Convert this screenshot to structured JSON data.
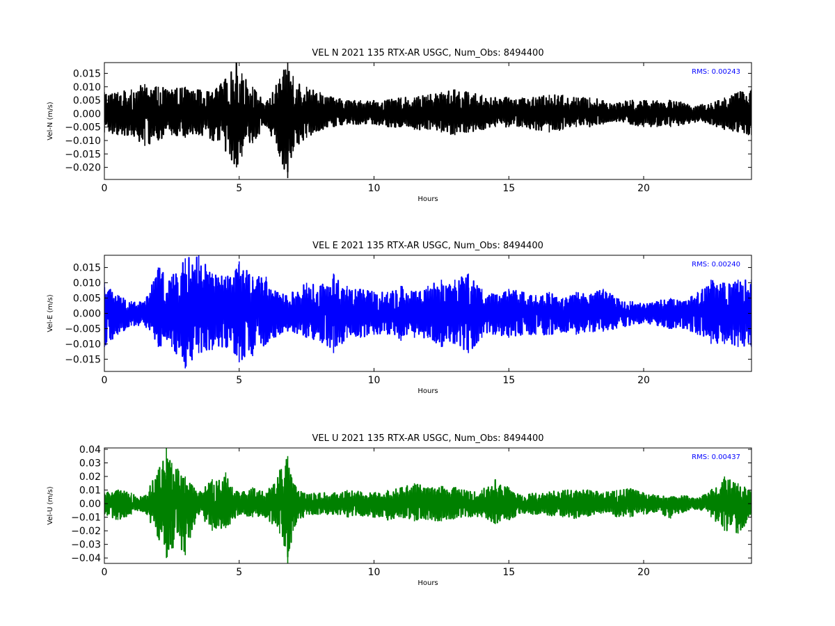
{
  "figure": {
    "background": "#ffffff"
  },
  "chart_data": [
    {
      "type": "line",
      "title": "VEL N 2021 135 RTX-AR  USGC, Num_Obs: 8494400",
      "xlabel": "Hours",
      "ylabel": "Vel-N (m/s)",
      "xlim": [
        0,
        24
      ],
      "ylim": [
        -0.0245,
        0.019
      ],
      "xticks": [
        0,
        5,
        10,
        15,
        20
      ],
      "xtick_labels": [
        "0",
        "5",
        "10",
        "15",
        "20"
      ],
      "yticks": [
        -0.02,
        -0.015,
        -0.01,
        -0.005,
        0.0,
        0.005,
        0.01,
        0.015
      ],
      "ytick_labels": [
        "−0.020",
        "−0.015",
        "−0.010",
        "−0.005",
        "0.000",
        "0.005",
        "0.010",
        "0.015"
      ],
      "annotation": "RMS:  0.00243",
      "annotation_color": "#0000ff",
      "grid": false,
      "series": [
        {
          "color": "#000000",
          "x": [
            0,
            0.5,
            1,
            1.5,
            2,
            2.5,
            3,
            3.5,
            4,
            4.5,
            4.9,
            5.1,
            5.5,
            6,
            6.5,
            6.8,
            7,
            7.5,
            8,
            8.5,
            9,
            9.5,
            10,
            10.5,
            11,
            11.5,
            12,
            12.5,
            13,
            13.5,
            14,
            14.5,
            15,
            15.5,
            16,
            16.5,
            17,
            17.5,
            18,
            18.5,
            19,
            19.5,
            20,
            20.5,
            21,
            21.5,
            22,
            22.5,
            23,
            23.5,
            24
          ],
          "upper": [
            0.008,
            0.008,
            0.009,
            0.011,
            0.01,
            0.009,
            0.01,
            0.009,
            0.008,
            0.013,
            0.019,
            0.015,
            0.01,
            0.004,
            0.013,
            0.019,
            0.014,
            0.01,
            0.008,
            0.006,
            0.005,
            0.005,
            0.005,
            0.005,
            0.006,
            0.006,
            0.007,
            0.008,
            0.009,
            0.008,
            0.007,
            0.006,
            0.006,
            0.006,
            0.006,
            0.007,
            0.007,
            0.006,
            0.006,
            0.005,
            0.004,
            0.005,
            0.005,
            0.005,
            0.005,
            0.004,
            0.003,
            0.004,
            0.006,
            0.008,
            0.009
          ],
          "lower": [
            -0.007,
            -0.008,
            -0.008,
            -0.012,
            -0.01,
            -0.008,
            -0.009,
            -0.008,
            -0.01,
            -0.014,
            -0.02,
            -0.016,
            -0.011,
            -0.004,
            -0.016,
            -0.024,
            -0.014,
            -0.009,
            -0.006,
            -0.005,
            -0.004,
            -0.004,
            -0.004,
            -0.005,
            -0.005,
            -0.006,
            -0.006,
            -0.007,
            -0.008,
            -0.007,
            -0.006,
            -0.005,
            -0.005,
            -0.005,
            -0.006,
            -0.007,
            -0.006,
            -0.005,
            -0.005,
            -0.004,
            -0.003,
            -0.004,
            -0.005,
            -0.005,
            -0.005,
            -0.004,
            -0.003,
            -0.004,
            -0.006,
            -0.007,
            -0.008
          ]
        }
      ]
    },
    {
      "type": "line",
      "title": "VEL E 2021 135 RTX-AR  USGC, Num_Obs: 8494400",
      "xlabel": "Hours",
      "ylabel": "Vel-E (m/s)",
      "xlim": [
        0,
        24
      ],
      "ylim": [
        -0.019,
        0.019
      ],
      "xticks": [
        0,
        5,
        10,
        15,
        20
      ],
      "xtick_labels": [
        "0",
        "5",
        "10",
        "15",
        "20"
      ],
      "yticks": [
        -0.015,
        -0.01,
        -0.005,
        0.0,
        0.005,
        0.01,
        0.015
      ],
      "ytick_labels": [
        "−0.015",
        "−0.010",
        "−0.005",
        "0.000",
        "0.005",
        "0.010",
        "0.015"
      ],
      "annotation": "RMS:  0.00240",
      "annotation_color": "#0000ff",
      "grid": false,
      "series": [
        {
          "color": "#0000ff",
          "x": [
            0,
            0.5,
            1,
            1.5,
            2,
            2.5,
            3,
            3.5,
            4,
            4.5,
            5,
            5.5,
            6,
            6.5,
            7,
            7.5,
            8,
            8.5,
            9,
            9.5,
            10,
            10.5,
            11,
            11.5,
            12,
            12.5,
            13,
            13.5,
            14,
            14.5,
            15,
            15.5,
            16,
            16.5,
            17,
            17.5,
            18,
            18.5,
            19,
            19.5,
            20,
            20.5,
            21,
            21.5,
            22,
            22.5,
            23,
            23.5,
            24
          ],
          "upper": [
            0.01,
            0.006,
            0.004,
            0.004,
            0.015,
            0.012,
            0.018,
            0.019,
            0.013,
            0.012,
            0.017,
            0.012,
            0.012,
            0.006,
            0.007,
            0.01,
            0.009,
            0.013,
            0.009,
            0.008,
            0.007,
            0.007,
            0.009,
            0.007,
            0.009,
            0.011,
            0.011,
            0.013,
            0.008,
            0.006,
            0.008,
            0.007,
            0.006,
            0.007,
            0.005,
            0.007,
            0.006,
            0.008,
            0.005,
            0.004,
            0.003,
            0.004,
            0.005,
            0.004,
            0.007,
            0.011,
            0.01,
            0.011,
            0.011
          ],
          "lower": [
            -0.011,
            -0.007,
            -0.004,
            -0.004,
            -0.011,
            -0.011,
            -0.018,
            -0.013,
            -0.012,
            -0.011,
            -0.016,
            -0.014,
            -0.01,
            -0.007,
            -0.006,
            -0.008,
            -0.009,
            -0.013,
            -0.008,
            -0.008,
            -0.007,
            -0.007,
            -0.009,
            -0.008,
            -0.008,
            -0.011,
            -0.01,
            -0.013,
            -0.008,
            -0.007,
            -0.008,
            -0.007,
            -0.007,
            -0.007,
            -0.006,
            -0.007,
            -0.006,
            -0.006,
            -0.005,
            -0.004,
            -0.003,
            -0.004,
            -0.005,
            -0.005,
            -0.007,
            -0.01,
            -0.01,
            -0.011,
            -0.011
          ]
        }
      ]
    },
    {
      "type": "line",
      "title": "VEL U 2021 135 RTX-AR  USGC, Num_Obs: 8494400",
      "xlabel": "Hours",
      "ylabel": "Vel-U (m/s)",
      "xlim": [
        0,
        24
      ],
      "ylim": [
        -0.044,
        0.041
      ],
      "xticks": [
        0,
        5,
        10,
        15,
        20
      ],
      "xtick_labels": [
        "0",
        "5",
        "10",
        "15",
        "20"
      ],
      "yticks": [
        -0.04,
        -0.03,
        -0.02,
        -0.01,
        0.0,
        0.01,
        0.02,
        0.03,
        0.04
      ],
      "ytick_labels": [
        "−0.04",
        "−0.03",
        "−0.02",
        "−0.01",
        "0.00",
        "0.01",
        "0.02",
        "0.03",
        "0.04"
      ],
      "annotation": "RMS:  0.00437",
      "annotation_color": "#0000ff",
      "grid": false,
      "series": [
        {
          "color": "#008000",
          "x": [
            0,
            0.5,
            1,
            1.5,
            2,
            2.3,
            2.5,
            3,
            3.5,
            4,
            4.5,
            5,
            5.5,
            6,
            6.5,
            6.8,
            7,
            7.5,
            8,
            8.5,
            9,
            9.5,
            10,
            10.5,
            11,
            11.5,
            12,
            12.5,
            13,
            13.5,
            14,
            14.5,
            15,
            15.5,
            16,
            16.5,
            17,
            17.5,
            18,
            18.5,
            19,
            19.5,
            20,
            20.5,
            21,
            21.5,
            22,
            22.5,
            23,
            23.5,
            24
          ],
          "upper": [
            0.008,
            0.01,
            0.008,
            0.006,
            0.025,
            0.041,
            0.03,
            0.02,
            0.008,
            0.018,
            0.023,
            0.008,
            0.012,
            0.008,
            0.025,
            0.035,
            0.015,
            0.007,
            0.008,
            0.008,
            0.01,
            0.009,
            0.008,
            0.01,
            0.012,
            0.015,
            0.012,
            0.013,
            0.012,
            0.009,
            0.01,
            0.018,
            0.012,
            0.006,
            0.008,
            0.009,
            0.01,
            0.01,
            0.01,
            0.008,
            0.01,
            0.011,
            0.008,
            0.006,
            0.005,
            0.006,
            0.004,
            0.01,
            0.02,
            0.015,
            0.01
          ],
          "lower": [
            -0.008,
            -0.012,
            -0.008,
            -0.006,
            -0.025,
            -0.04,
            -0.033,
            -0.038,
            -0.008,
            -0.02,
            -0.018,
            -0.008,
            -0.01,
            -0.01,
            -0.022,
            -0.044,
            -0.02,
            -0.008,
            -0.008,
            -0.008,
            -0.01,
            -0.009,
            -0.01,
            -0.012,
            -0.01,
            -0.013,
            -0.012,
            -0.013,
            -0.011,
            -0.01,
            -0.01,
            -0.015,
            -0.012,
            -0.007,
            -0.008,
            -0.009,
            -0.01,
            -0.011,
            -0.009,
            -0.007,
            -0.01,
            -0.01,
            -0.008,
            -0.006,
            -0.011,
            -0.006,
            -0.004,
            -0.01,
            -0.02,
            -0.022,
            -0.01
          ]
        }
      ]
    }
  ]
}
